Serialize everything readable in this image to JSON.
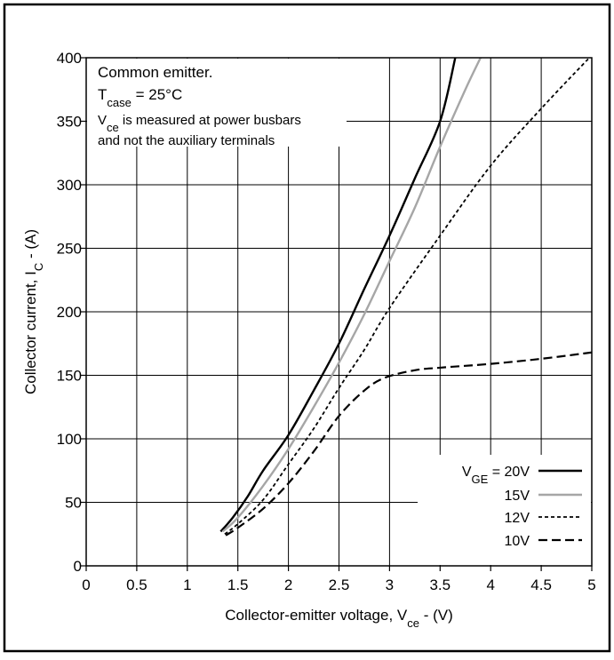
{
  "chart_data": {
    "type": "line",
    "title": "",
    "xlabel": {
      "main": "Collector-emitter voltage, V",
      "sub": "ce",
      "tail": " - (V)"
    },
    "ylabel": {
      "main": "Collector current, I",
      "sub": "C",
      "tail": " - (A)"
    },
    "xlim": [
      0,
      5
    ],
    "ylim": [
      0,
      400
    ],
    "x_ticks": [
      0,
      0.5,
      1,
      1.5,
      2,
      2.5,
      3,
      3.5,
      4,
      4.5,
      5
    ],
    "y_ticks": [
      0,
      50,
      100,
      150,
      200,
      250,
      300,
      350,
      400
    ],
    "grid": true,
    "annotations": {
      "line1": "Common emitter.",
      "line2_main": "T",
      "line2_sub": "case",
      "line2_tail": " = 25°C",
      "line3_main": "V",
      "line3_sub": "ce",
      "line3_tail": " is measured at power busbars",
      "line4": "and not the auxiliary terminals"
    },
    "legend_position": "bottom-right",
    "legend_prefix": {
      "main": "V",
      "sub": "GE",
      "tail": " = "
    },
    "series": [
      {
        "name": "20V",
        "color": "#000000",
        "dash": "",
        "width": 2.4,
        "x": [
          1.33,
          1.45,
          1.6,
          1.75,
          2.0,
          2.25,
          2.5,
          2.75,
          3.0,
          3.25,
          3.5,
          3.65
        ],
        "y": [
          27,
          38,
          55,
          75,
          103,
          138,
          175,
          218,
          260,
          305,
          350,
          400
        ]
      },
      {
        "name": "15V",
        "color": "#a6a6a6",
        "dash": "",
        "width": 2.4,
        "x": [
          1.35,
          1.5,
          1.75,
          2.0,
          2.25,
          2.5,
          2.75,
          3.0,
          3.25,
          3.5,
          3.75,
          3.9
        ],
        "y": [
          27,
          38,
          63,
          92,
          125,
          160,
          198,
          240,
          282,
          330,
          375,
          400
        ]
      },
      {
        "name": "12V",
        "color": "#000000",
        "dash": "4,3",
        "width": 1.8,
        "x": [
          1.37,
          1.5,
          1.75,
          2.0,
          2.25,
          2.5,
          2.75,
          3.0,
          3.5,
          4.0,
          4.5,
          5.0
        ],
        "y": [
          25,
          33,
          52,
          80,
          108,
          140,
          170,
          203,
          260,
          315,
          360,
          402
        ]
      },
      {
        "name": "10V",
        "color": "#000000",
        "dash": "10,5",
        "width": 2.2,
        "x": [
          1.38,
          1.5,
          1.75,
          2.0,
          2.25,
          2.5,
          2.75,
          2.95,
          3.25,
          3.5,
          4.0,
          4.5,
          5.0
        ],
        "y": [
          24,
          30,
          45,
          65,
          90,
          118,
          138,
          148,
          154,
          156,
          159,
          163,
          168
        ]
      }
    ]
  }
}
